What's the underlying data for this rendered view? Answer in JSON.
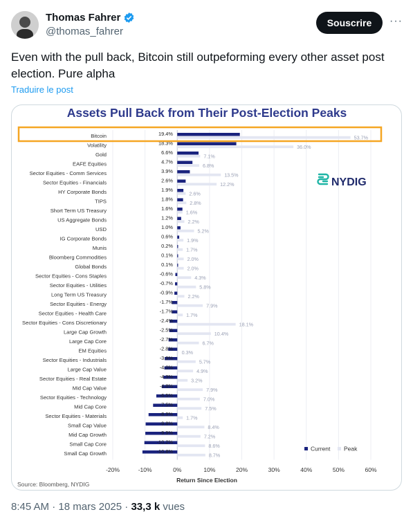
{
  "author": {
    "name": "Thomas Fahrer",
    "handle": "@thomas_fahrer"
  },
  "subscribe_label": "Souscrire",
  "more_label": "···",
  "tweet_text": "Even with the pull back, Bitcoin still outpeforming every other asset post election. Pure alpha",
  "translate_label": "Traduire le post",
  "meta": {
    "time": "8:45 AM",
    "sep1": "·",
    "date": "18 mars 2025",
    "sep2": "·",
    "views": "33,3 k",
    "views_label": "vues"
  },
  "colors": {
    "current": "#1a237e",
    "peak": "#e3e6f2",
    "highlight": "#f5a623",
    "title": "#2e3a8c",
    "nydig": "#1fb5a6"
  },
  "chart_data": {
    "type": "bar",
    "orientation": "horizontal",
    "title": "Assets Pull Back from Their Post-Election Peaks",
    "xlabel": "Return Since Election",
    "ylabel": "",
    "xlim": [
      -20,
      60
    ],
    "x_ticks": [
      "-20%",
      "-10%",
      "0%",
      "10%",
      "20%",
      "30%",
      "40%",
      "50%",
      "60%"
    ],
    "x_tick_values": [
      -20,
      -10,
      0,
      10,
      20,
      30,
      40,
      50,
      60
    ],
    "grid": true,
    "legend_position": "bottom-right",
    "source": "Source: Bloomberg, NYDIG",
    "logo_text": "NYDIG",
    "highlighted_category": "Bitcoin",
    "categories": [
      "Bitcoin",
      "Volatility",
      "Gold",
      "EAFE Equities",
      "Sector Equities - Comm Services",
      "Sector Equities - Financials",
      "HY Corporate Bonds",
      "TIPS",
      "Short Term US Treasury",
      "US Aggregate Bonds",
      "USD",
      "IG Corporate Bonds",
      "Munis",
      "Bloomberg Commodities",
      "Global Bonds",
      "Sector Equities - Cons Staples",
      "Sector Equities - Utilities",
      "Long Term US Treasury",
      "Sector Equities - Energy",
      "Sector Equities - Health Care",
      "Sector Equities - Cons Discretionary",
      "Large Cap Growth",
      "Large Cap Core",
      "EM Equities",
      "Sector Equities - Industrials",
      "Large Cap Value",
      "Sector Equities - Real Estate",
      "Mid Cap Value",
      "Sector Equities - Technology",
      "Mid Cap Core",
      "Sector Equities - Materials",
      "Small Cap Value",
      "Mid Cap Growth",
      "Small Cap Core",
      "Small Cap Growth"
    ],
    "series": [
      {
        "name": "Current",
        "values": [
          19.4,
          18.3,
          6.6,
          4.7,
          3.9,
          2.6,
          1.9,
          1.8,
          1.6,
          1.2,
          1.0,
          0.6,
          0.2,
          0.1,
          0.1,
          -0.6,
          -0.7,
          -0.9,
          -1.7,
          -1.7,
          -2.4,
          -2.5,
          -2.7,
          -2.8,
          -3.9,
          -4.0,
          -4.3,
          -4.8,
          -6.5,
          -7.5,
          -8.9,
          -9.8,
          -9.9,
          -10.2,
          -10.8
        ],
        "labels": [
          "19.4%",
          "18.3%",
          "6.6%",
          "4.7%",
          "3.9%",
          "2.6%",
          "1.9%",
          "1.8%",
          "1.6%",
          "1.2%",
          "1.0%",
          "0.6%",
          "0.2%",
          "0.1%",
          "0.1%",
          "-0.6%",
          "-0.7%",
          "-0.9%",
          "-1.7%",
          "-1.7%",
          "-2.4%",
          "-2.5%",
          "-2.7%",
          "-2.8%",
          "-3.9%",
          "-4.0%",
          "-4.3%",
          "-4.8%",
          "-6.5%",
          "-7.5%",
          "-8.9%",
          "-9.8%",
          "-9.9%",
          "-10.2%",
          "-10.8%"
        ]
      },
      {
        "name": "Peak",
        "values": [
          53.7,
          36.0,
          7.1,
          6.8,
          13.5,
          12.2,
          2.6,
          2.8,
          1.6,
          2.2,
          5.2,
          1.9,
          1.7,
          2.0,
          2.0,
          4.3,
          5.8,
          2.2,
          7.9,
          1.7,
          18.1,
          10.4,
          6.7,
          0.3,
          5.7,
          4.9,
          3.2,
          7.9,
          7.0,
          7.5,
          1.7,
          8.4,
          7.2,
          8.6,
          8.7
        ],
        "labels": [
          "53.7%",
          "36.0%",
          "7.1%",
          "6.8%",
          "13.5%",
          "12.2%",
          "2.6%",
          "2.8%",
          "1.6%",
          "2.2%",
          "5.2%",
          "1.9%",
          "1.7%",
          "2.0%",
          "2.0%",
          "4.3%",
          "5.8%",
          "2.2%",
          "7.9%",
          "1.7%",
          "18.1%",
          "10.4%",
          "6.7%",
          "0.3%",
          "5.7%",
          "4.9%",
          "3.2%",
          "7.9%",
          "7.0%",
          "7.5%",
          "1.7%",
          "8.4%",
          "7.2%",
          "8.6%",
          "8.7%"
        ]
      }
    ]
  }
}
